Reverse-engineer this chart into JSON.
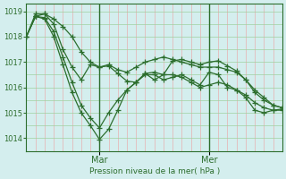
{
  "background_color": "#d4eeee",
  "grid_color_v": "#e8b0b0",
  "grid_color_h": "#a0d0a0",
  "line_color": "#2d6e2d",
  "ylabel": "Pression niveau de la mer( hPa )",
  "ylim": [
    1013.5,
    1019.3
  ],
  "yticks": [
    1014,
    1015,
    1016,
    1017,
    1018,
    1019
  ],
  "day_labels": [
    "Mar",
    "Mer"
  ],
  "day_positions": [
    8,
    20
  ],
  "total_points": 29,
  "series": [
    [
      1018.0,
      1018.8,
      1018.9,
      1018.7,
      1018.4,
      1018.0,
      1017.4,
      1017.0,
      1016.8,
      1016.9,
      1016.7,
      1016.6,
      1016.8,
      1017.0,
      1017.1,
      1017.2,
      1017.1,
      1017.0,
      1016.9,
      1016.8,
      1016.8,
      1016.8,
      1016.7,
      1016.6,
      1016.3,
      1015.9,
      1015.6,
      1015.3,
      1015.2
    ],
    [
      1018.0,
      1018.9,
      1018.9,
      1018.5,
      1017.5,
      1016.8,
      1016.3,
      1016.9,
      1016.8,
      1016.85,
      1016.55,
      1016.25,
      1016.2,
      1016.55,
      1016.3,
      1016.5,
      1016.5,
      1016.4,
      1016.2,
      1016.0,
      1016.1,
      1016.2,
      1016.1,
      1015.9,
      1015.7,
      1015.4,
      1015.2,
      1015.1,
      1015.1
    ],
    [
      1018.0,
      1018.8,
      1018.75,
      1018.2,
      1017.2,
      1016.2,
      1015.3,
      1014.8,
      1014.4,
      1015.0,
      1015.5,
      1015.9,
      1016.2,
      1016.55,
      1016.6,
      1016.5,
      1017.05,
      1017.1,
      1017.0,
      1016.9,
      1017.0,
      1017.05,
      1016.85,
      1016.65,
      1016.3,
      1015.8,
      1015.5,
      1015.3,
      1015.2
    ],
    [
      1018.0,
      1018.8,
      1018.7,
      1018.0,
      1016.9,
      1015.8,
      1015.0,
      1014.5,
      1013.95,
      1014.35,
      1015.1,
      1015.9,
      1016.2,
      1016.5,
      1016.5,
      1016.3,
      1016.4,
      1016.5,
      1016.3,
      1016.1,
      1016.6,
      1016.5,
      1016.0,
      1015.9,
      1015.6,
      1015.1,
      1015.0,
      1015.1,
      1015.15
    ]
  ]
}
